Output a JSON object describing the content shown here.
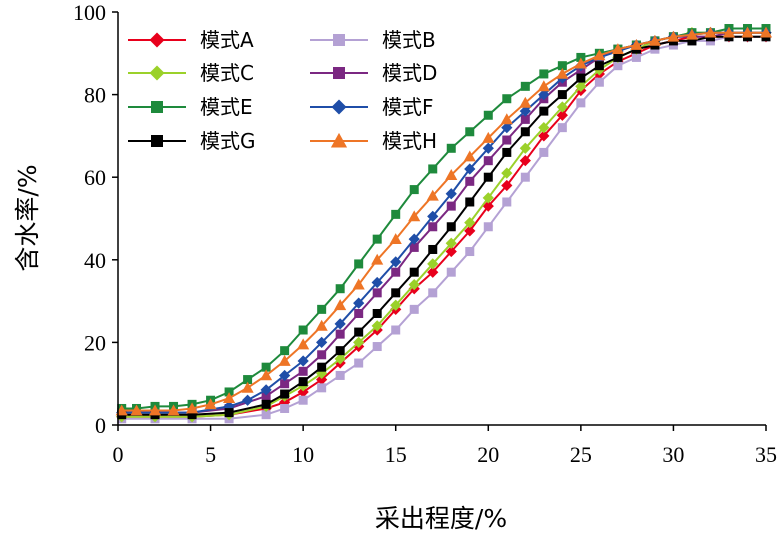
{
  "chart_data": {
    "type": "line",
    "title": "",
    "xlabel": "采出程度/%",
    "ylabel": "含水率/%",
    "xlim": [
      0,
      35
    ],
    "ylim": [
      0,
      100
    ],
    "xticks": [
      0,
      5,
      10,
      15,
      20,
      25,
      30,
      35
    ],
    "yticks": [
      0,
      20,
      40,
      60,
      80,
      100
    ],
    "grid": false,
    "legend_position": "top-left",
    "series": [
      {
        "name": "模式A",
        "color": "#e8001c",
        "marker": "diamond",
        "x": [
          0.2,
          2,
          4,
          6,
          8,
          9,
          10,
          11,
          12,
          13,
          14,
          15,
          16,
          17,
          18,
          19,
          20,
          21,
          22,
          23,
          24,
          25,
          26,
          27,
          28,
          29,
          30,
          31,
          32,
          33,
          34,
          35
        ],
        "y": [
          2,
          2,
          2,
          2.5,
          4,
          5.5,
          8,
          11,
          15,
          19,
          23,
          28,
          33,
          37,
          42,
          47,
          53,
          58,
          64,
          70,
          75,
          81,
          85,
          88,
          90,
          92,
          93,
          94,
          94,
          94,
          94,
          94
        ]
      },
      {
        "name": "模式B",
        "color": "#b4a1d4",
        "marker": "square",
        "x": [
          0.2,
          2,
          4,
          6,
          8,
          9,
          10,
          11,
          12,
          13,
          14,
          15,
          16,
          17,
          18,
          19,
          20,
          21,
          22,
          23,
          24,
          25,
          26,
          27,
          28,
          29,
          30,
          31,
          32,
          33,
          34,
          35
        ],
        "y": [
          1.5,
          1.5,
          1.5,
          1.5,
          2.5,
          4,
          6,
          9,
          12,
          15,
          19,
          23,
          28,
          32,
          37,
          42,
          48,
          54,
          60,
          66,
          72,
          78,
          83,
          87,
          89,
          91,
          92,
          93,
          93,
          94,
          94,
          94
        ]
      },
      {
        "name": "模式C",
        "color": "#9bd12a",
        "marker": "diamond",
        "x": [
          0.2,
          2,
          4,
          6,
          8,
          9,
          10,
          11,
          12,
          13,
          14,
          15,
          16,
          17,
          18,
          19,
          20,
          21,
          22,
          23,
          24,
          25,
          26,
          27,
          28,
          29,
          30,
          31,
          32,
          33,
          34,
          35
        ],
        "y": [
          2,
          2,
          2,
          2.5,
          4.5,
          7,
          9.5,
          12.5,
          16,
          20,
          24,
          29,
          34,
          39,
          44,
          49,
          55,
          61,
          67,
          72,
          77,
          82,
          86,
          89,
          91,
          93,
          94,
          95,
          95,
          95,
          95,
          95
        ]
      },
      {
        "name": "模式D",
        "color": "#7b2882",
        "marker": "square",
        "x": [
          0.2,
          2,
          4,
          6,
          8,
          9,
          10,
          11,
          12,
          13,
          14,
          15,
          16,
          17,
          18,
          19,
          20,
          21,
          22,
          23,
          24,
          25,
          26,
          27,
          28,
          29,
          30,
          31,
          32,
          33,
          34,
          35
        ],
        "y": [
          3,
          3,
          3,
          4,
          7,
          10,
          13,
          17,
          22,
          27,
          32,
          37,
          43,
          48,
          53,
          59,
          64,
          69,
          74,
          79,
          83,
          86,
          89,
          91,
          92,
          93,
          94,
          94,
          94,
          95,
          95,
          95
        ]
      },
      {
        "name": "模式E",
        "color": "#1e8a3c",
        "marker": "square",
        "x": [
          0.2,
          1,
          2,
          3,
          4,
          5,
          6,
          7,
          8,
          9,
          10,
          11,
          12,
          13,
          14,
          15,
          16,
          17,
          18,
          19,
          20,
          21,
          22,
          23,
          24,
          25,
          26,
          27,
          28,
          29,
          30,
          31,
          32,
          33,
          34,
          35
        ],
        "y": [
          4,
          4,
          4.5,
          4.5,
          5,
          6,
          8,
          11,
          14,
          18,
          23,
          28,
          33,
          39,
          45,
          51,
          57,
          62,
          67,
          71,
          75,
          79,
          82,
          85,
          87,
          89,
          90,
          91,
          92,
          93,
          94,
          95,
          95,
          96,
          96,
          96
        ]
      },
      {
        "name": "模式F",
        "color": "#1f4ea8",
        "marker": "diamond",
        "x": [
          0.2,
          2,
          4,
          6,
          7,
          8,
          9,
          10,
          11,
          12,
          13,
          14,
          15,
          16,
          17,
          18,
          19,
          20,
          21,
          22,
          23,
          24,
          25,
          26,
          27,
          28,
          29,
          30,
          31,
          32,
          33,
          34,
          35
        ],
        "y": [
          3,
          3,
          3,
          4.5,
          6,
          8.5,
          12,
          15.5,
          20,
          24.5,
          29.5,
          34.5,
          39.5,
          45,
          50.5,
          56,
          62,
          67,
          72,
          76,
          80,
          84,
          87,
          89,
          90.5,
          92,
          93,
          94,
          94.5,
          95,
          95,
          95,
          95
        ]
      },
      {
        "name": "模式G",
        "color": "#000000",
        "marker": "square",
        "x": [
          0.2,
          2,
          4,
          6,
          8,
          9,
          10,
          11,
          12,
          13,
          14,
          15,
          16,
          17,
          18,
          19,
          20,
          21,
          22,
          23,
          24,
          25,
          26,
          27,
          28,
          29,
          30,
          31,
          32,
          33,
          34,
          35
        ],
        "y": [
          2.5,
          2.5,
          2.5,
          3,
          5,
          7.5,
          10.5,
          14,
          18,
          22.5,
          27,
          32,
          37,
          42.5,
          48,
          54,
          60,
          66,
          71,
          76,
          80,
          84,
          87,
          89,
          91,
          92,
          93,
          93,
          94,
          94,
          94,
          94
        ]
      },
      {
        "name": "模式H",
        "color": "#ee7526",
        "marker": "triangle",
        "x": [
          0.2,
          1,
          2,
          3,
          4,
          5,
          6,
          7,
          8,
          9,
          10,
          11,
          12,
          13,
          14,
          15,
          16,
          17,
          18,
          19,
          20,
          21,
          22,
          23,
          24,
          25,
          26,
          27,
          28,
          29,
          30,
          31,
          32,
          33,
          34,
          35
        ],
        "y": [
          3.5,
          3.5,
          3.5,
          3.5,
          4,
          5,
          6.5,
          9,
          12,
          15.5,
          19.5,
          24,
          29,
          34,
          40,
          45,
          50.5,
          55.5,
          60.5,
          65,
          69.5,
          74,
          78,
          82,
          85,
          87.5,
          89.5,
          91,
          92,
          93,
          94,
          94.5,
          95,
          95,
          95,
          95
        ]
      }
    ]
  }
}
